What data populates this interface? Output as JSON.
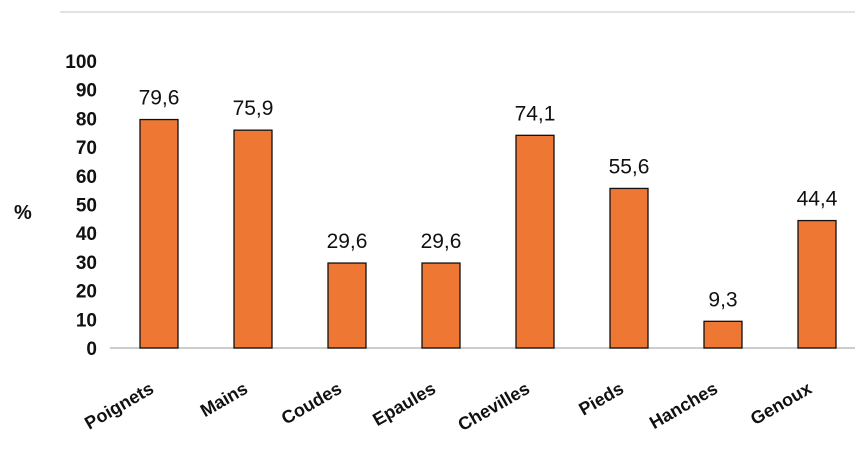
{
  "chart_data": {
    "type": "bar",
    "categories": [
      "Poignets",
      "Mains",
      "Coudes",
      "Epaules",
      "Chevilles",
      "Pieds",
      "Hanches",
      "Genoux"
    ],
    "values": [
      79.6,
      75.9,
      29.6,
      29.6,
      74.1,
      55.6,
      9.3,
      44.4
    ],
    "data_labels": [
      "79,6",
      "75,9",
      "29,6",
      "29,6",
      "74,1",
      "55,6",
      "9,3",
      "44,4"
    ],
    "ylabel": "%",
    "ylim": [
      0,
      100
    ],
    "yticks": [
      "0",
      "10",
      "20",
      "30",
      "40",
      "50",
      "60",
      "70",
      "80",
      "90",
      "100"
    ],
    "grid": false,
    "legend": "none",
    "bar_color": "#ee7733",
    "bar_edge_color": "#111111"
  }
}
